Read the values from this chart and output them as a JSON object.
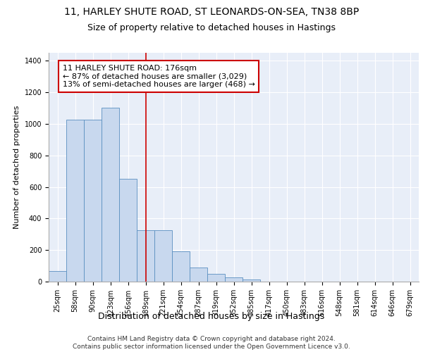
{
  "title1": "11, HARLEY SHUTE ROAD, ST LEONARDS-ON-SEA, TN38 8BP",
  "title2": "Size of property relative to detached houses in Hastings",
  "xlabel": "Distribution of detached houses by size in Hastings",
  "ylabel": "Number of detached properties",
  "categories": [
    "25sqm",
    "58sqm",
    "90sqm",
    "123sqm",
    "156sqm",
    "189sqm",
    "221sqm",
    "254sqm",
    "287sqm",
    "319sqm",
    "352sqm",
    "385sqm",
    "417sqm",
    "450sqm",
    "483sqm",
    "516sqm",
    "548sqm",
    "581sqm",
    "614sqm",
    "646sqm",
    "679sqm"
  ],
  "values": [
    65,
    1025,
    1025,
    1100,
    650,
    325,
    325,
    190,
    90,
    50,
    25,
    15,
    0,
    0,
    0,
    0,
    0,
    0,
    0,
    0,
    0
  ],
  "bar_color": "#c8d8ee",
  "bar_edge_color": "#5a8fc0",
  "vline_x": 5,
  "vline_color": "#cc0000",
  "annotation_text": "11 HARLEY SHUTE ROAD: 176sqm\n← 87% of detached houses are smaller (3,029)\n13% of semi-detached houses are larger (468) →",
  "annotation_box_color": "white",
  "annotation_box_edge": "#cc0000",
  "footer": "Contains HM Land Registry data © Crown copyright and database right 2024.\nContains public sector information licensed under the Open Government Licence v3.0.",
  "plot_bg_color": "#e8eef8",
  "ylim": [
    0,
    1450
  ],
  "yticks": [
    0,
    200,
    400,
    600,
    800,
    1000,
    1200,
    1400
  ],
  "title1_fontsize": 10,
  "title2_fontsize": 9,
  "xlabel_fontsize": 9,
  "ylabel_fontsize": 8,
  "tick_fontsize": 7,
  "annotation_fontsize": 8,
  "footer_fontsize": 6.5
}
